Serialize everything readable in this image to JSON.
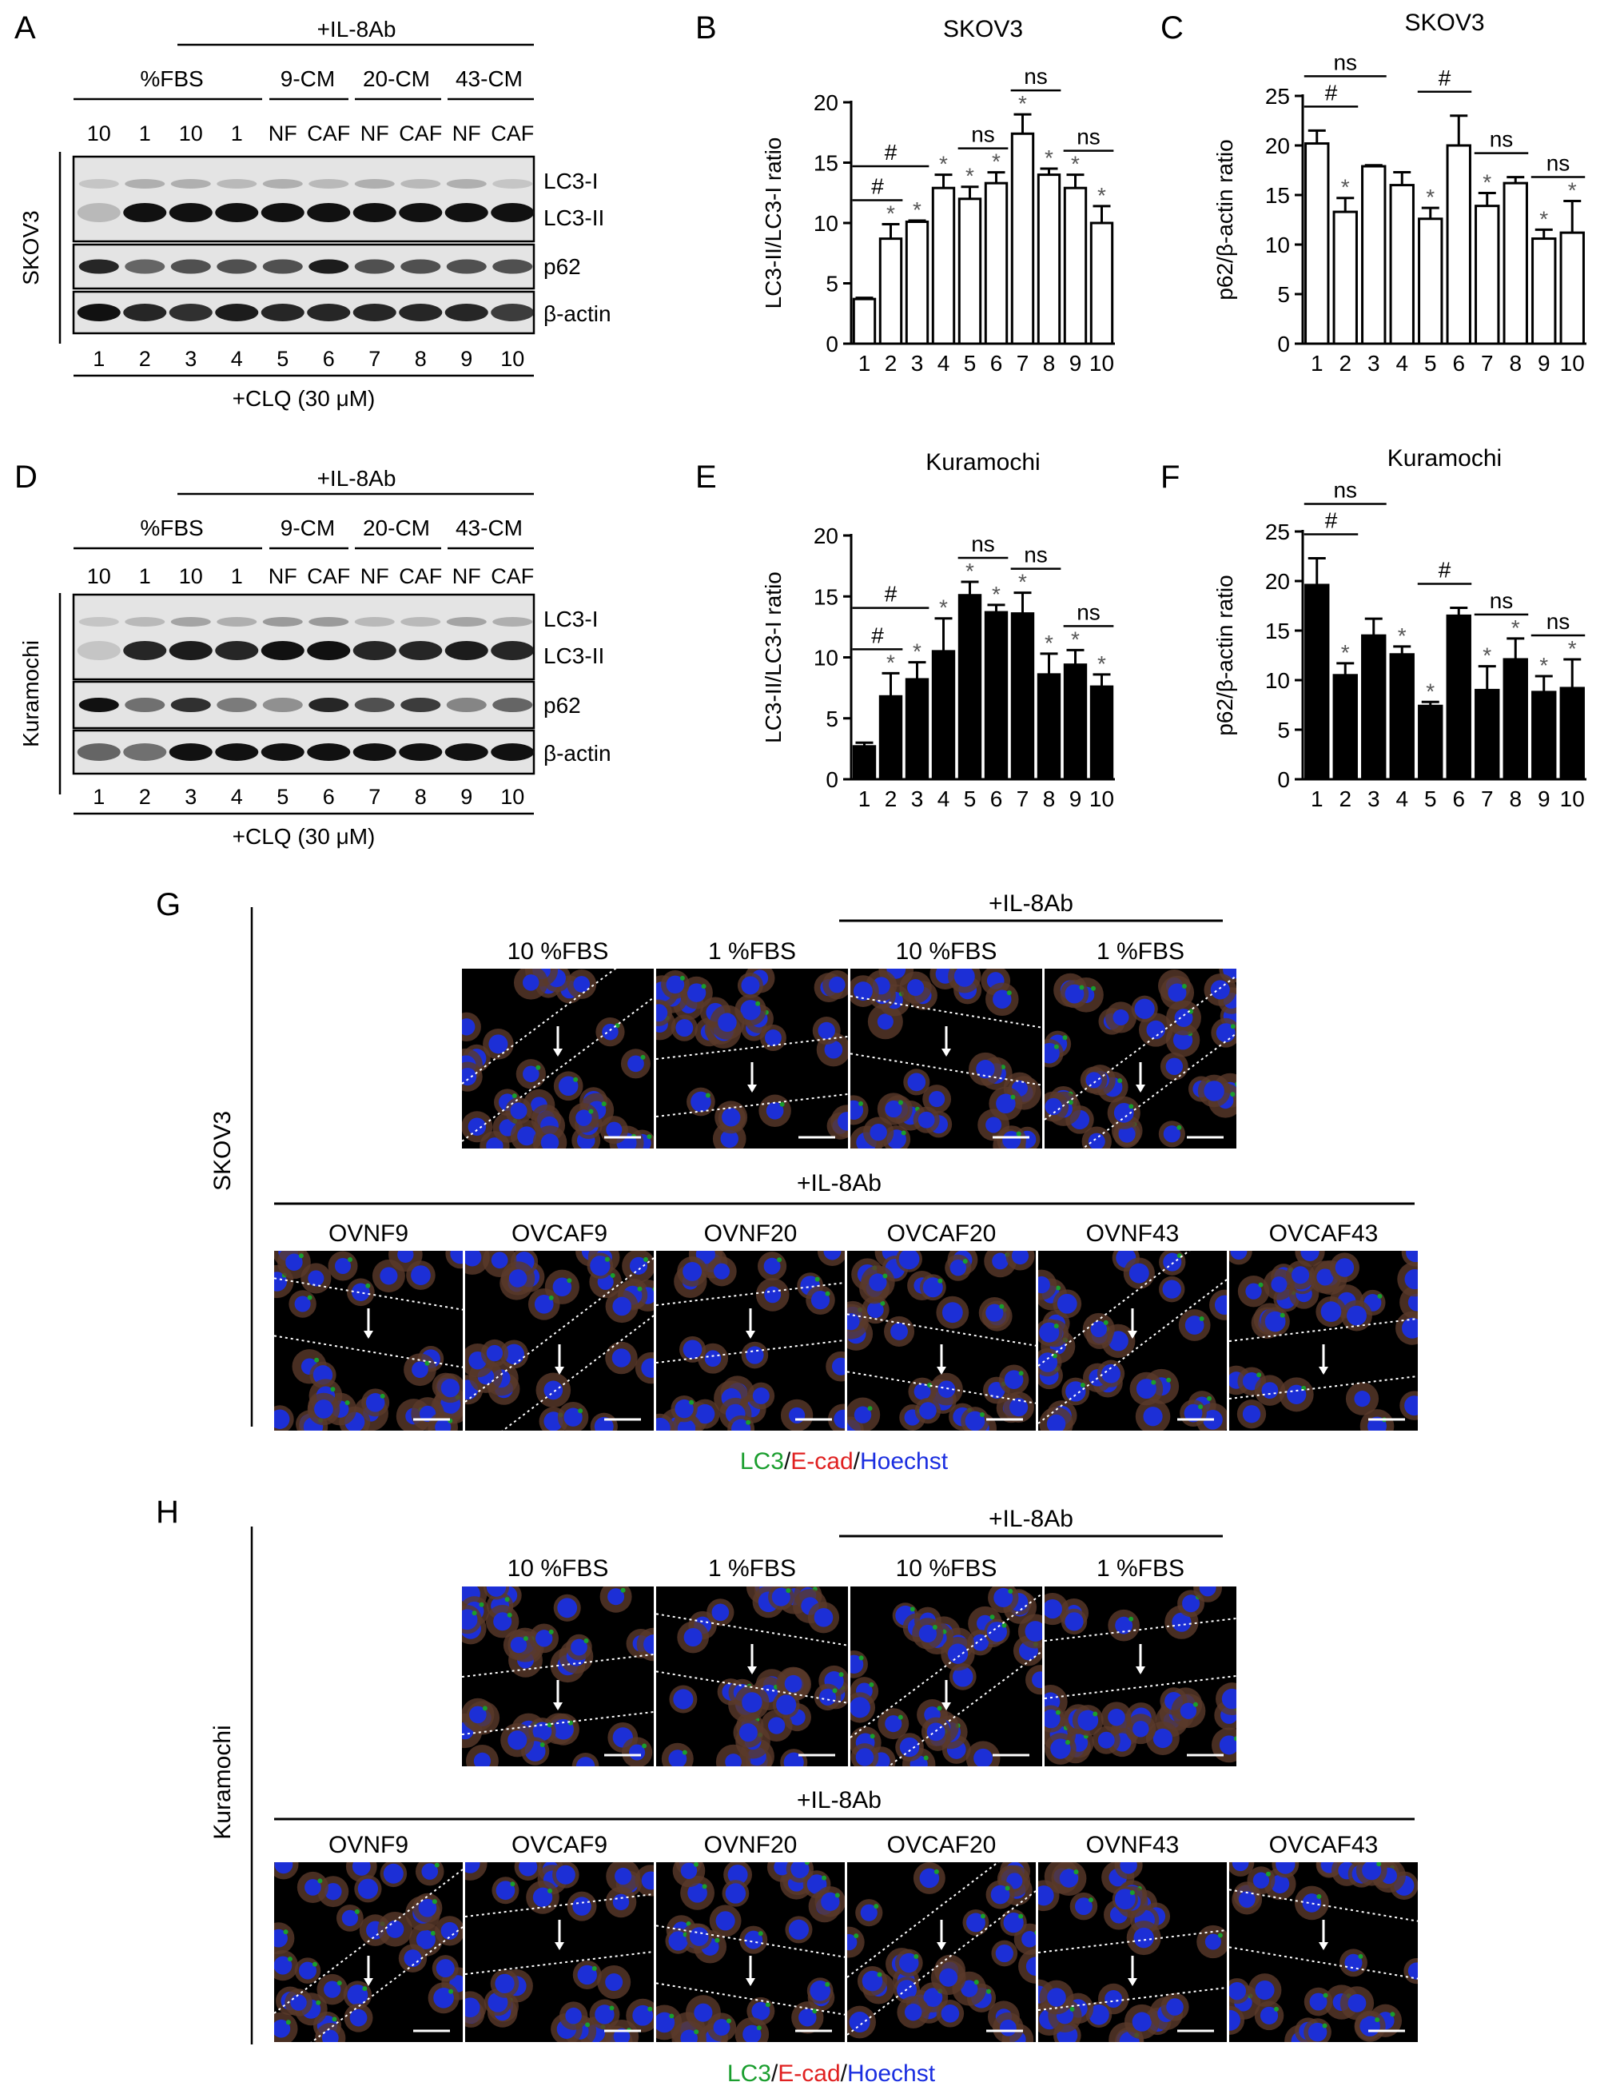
{
  "panel_letters": {
    "A": "A",
    "B": "B",
    "C": "C",
    "D": "D",
    "E": "E",
    "F": "F",
    "G": "G",
    "H": "H"
  },
  "western_blots": [
    {
      "id": "A",
      "cell_line": "SKOV3",
      "header": "+IL-8Ab",
      "group_fbs": "%FBS",
      "group_9": "9-CM",
      "group_20": "20-CM",
      "group_43": "43-CM",
      "lane_top_labels": [
        "10",
        "1",
        "10",
        "1",
        "NF",
        "CAF",
        "NF",
        "CAF",
        "NF",
        "CAF"
      ],
      "band_labels": [
        "LC3-I",
        "LC3-II",
        "p62",
        "β-actin"
      ],
      "lane_numbers": [
        "1",
        "2",
        "3",
        "4",
        "5",
        "6",
        "7",
        "8",
        "9",
        "10"
      ],
      "footer": "+CLQ (30 μM)",
      "lc3i_intensity": [
        0.15,
        0.25,
        0.25,
        0.2,
        0.25,
        0.2,
        0.25,
        0.2,
        0.25,
        0.15
      ],
      "lc3ii_intensity": [
        0.2,
        1,
        1,
        1,
        1,
        1,
        1,
        1,
        1,
        1
      ],
      "p62_intensity": [
        0.9,
        0.6,
        0.7,
        0.7,
        0.7,
        0.95,
        0.7,
        0.7,
        0.7,
        0.7
      ],
      "actin_intensity": [
        1,
        0.9,
        0.85,
        0.95,
        0.9,
        0.9,
        0.9,
        0.9,
        0.9,
        0.8
      ]
    },
    {
      "id": "D",
      "cell_line": "Kuramochi",
      "header": "+IL-8Ab",
      "group_fbs": "%FBS",
      "group_9": "9-CM",
      "group_20": "20-CM",
      "group_43": "43-CM",
      "lane_top_labels": [
        "10",
        "1",
        "10",
        "1",
        "NF",
        "CAF",
        "NF",
        "CAF",
        "NF",
        "CAF"
      ],
      "band_labels": [
        "LC3-I",
        "LC3-II",
        "p62",
        "β-actin"
      ],
      "lane_numbers": [
        "1",
        "2",
        "3",
        "4",
        "5",
        "6",
        "7",
        "8",
        "9",
        "10"
      ],
      "footer": "+CLQ (30 μM)",
      "lc3i_intensity": [
        0.15,
        0.2,
        0.3,
        0.25,
        0.35,
        0.35,
        0.2,
        0.2,
        0.3,
        0.25
      ],
      "lc3ii_intensity": [
        0.15,
        0.9,
        0.95,
        0.9,
        1,
        1,
        0.9,
        0.9,
        0.95,
        0.9
      ],
      "p62_intensity": [
        1,
        0.55,
        0.85,
        0.5,
        0.4,
        0.9,
        0.7,
        0.8,
        0.45,
        0.6
      ],
      "actin_intensity": [
        0.6,
        0.55,
        1,
        1,
        1,
        1,
        1,
        1,
        1,
        1
      ]
    }
  ],
  "chart_data": [
    {
      "panel": "B",
      "type": "bar",
      "title": "SKOV3",
      "ylabel": "LC3-II/LC3-I ratio",
      "ylim": [
        0,
        20
      ],
      "yticks": [
        0,
        5,
        10,
        15,
        20
      ],
      "categories": [
        "1",
        "2",
        "3",
        "4",
        "5",
        "6",
        "7",
        "8",
        "9",
        "10"
      ],
      "values": [
        3.7,
        8.7,
        10.1,
        12.9,
        12.0,
        13.3,
        17.4,
        14.0,
        12.9,
        10.0
      ],
      "errors": [
        0.1,
        1.2,
        0.1,
        1.1,
        1.0,
        0.9,
        1.6,
        0.5,
        1.1,
        1.4
      ],
      "fill": "#ffffff",
      "stars": [
        false,
        true,
        true,
        true,
        true,
        true,
        true,
        true,
        true,
        true
      ],
      "star_label": "*",
      "brackets": [
        {
          "from": 1,
          "to": 2,
          "level": 0,
          "label": "#"
        },
        {
          "from": 1,
          "to": 3,
          "level": 1,
          "label": "#"
        },
        {
          "from": 5,
          "to": 6,
          "level": 0,
          "label": "ns"
        },
        {
          "from": 7,
          "to": 8,
          "level": 0,
          "label": "ns"
        },
        {
          "from": 9,
          "to": 10,
          "level": 0,
          "label": "ns"
        }
      ]
    },
    {
      "panel": "C",
      "type": "bar",
      "title": "SKOV3",
      "ylabel": "p62/β-actin ratio",
      "ylim": [
        0,
        25
      ],
      "yticks": [
        0,
        5,
        10,
        15,
        20,
        25
      ],
      "categories": [
        "1",
        "2",
        "3",
        "4",
        "5",
        "6",
        "7",
        "8",
        "9",
        "10"
      ],
      "values": [
        20.2,
        13.3,
        17.9,
        16.0,
        12.6,
        20.0,
        13.9,
        16.2,
        10.6,
        11.2
      ],
      "errors": [
        1.3,
        1.4,
        0.1,
        1.3,
        1.1,
        3.0,
        1.3,
        0.6,
        0.9,
        3.2
      ],
      "fill": "#ffffff",
      "stars": [
        false,
        true,
        false,
        false,
        true,
        false,
        true,
        false,
        true,
        true
      ],
      "star_label": "*",
      "brackets": [
        {
          "from": 1,
          "to": 2,
          "level": 0,
          "label": "#"
        },
        {
          "from": 1,
          "to": 3,
          "level": 1,
          "label": "ns"
        },
        {
          "from": 5,
          "to": 6,
          "level": 0,
          "label": "#"
        },
        {
          "from": 7,
          "to": 8,
          "level": 0,
          "label": "ns"
        },
        {
          "from": 9,
          "to": 10,
          "level": 0,
          "label": "ns"
        }
      ]
    },
    {
      "panel": "E",
      "type": "bar",
      "title": "Kuramochi",
      "ylabel": "LC3-II/LC3-I ratio",
      "ylim": [
        0,
        20
      ],
      "yticks": [
        0,
        5,
        10,
        15,
        20
      ],
      "categories": [
        "1",
        "2",
        "3",
        "4",
        "5",
        "6",
        "7",
        "8",
        "9",
        "10"
      ],
      "values": [
        2.7,
        6.8,
        8.2,
        10.5,
        15.1,
        13.7,
        13.6,
        8.6,
        9.4,
        7.6
      ],
      "errors": [
        0.3,
        1.9,
        1.4,
        2.7,
        1.1,
        0.6,
        1.7,
        1.7,
        1.2,
        1.0
      ],
      "fill": "#000000",
      "stars": [
        false,
        true,
        true,
        true,
        true,
        true,
        true,
        true,
        true,
        true
      ],
      "star_label": "*",
      "brackets": [
        {
          "from": 1,
          "to": 2,
          "level": 0,
          "label": "#"
        },
        {
          "from": 1,
          "to": 3,
          "level": 1,
          "label": "#"
        },
        {
          "from": 5,
          "to": 6,
          "level": 0,
          "label": "ns"
        },
        {
          "from": 7,
          "to": 8,
          "level": 0,
          "label": "ns"
        },
        {
          "from": 9,
          "to": 10,
          "level": 0,
          "label": "ns"
        }
      ]
    },
    {
      "panel": "F",
      "type": "bar",
      "title": "Kuramochi",
      "ylabel": "p62/β-actin ratio",
      "ylim": [
        0,
        25
      ],
      "yticks": [
        0,
        5,
        10,
        15,
        20,
        25
      ],
      "categories": [
        "1",
        "2",
        "3",
        "4",
        "5",
        "6",
        "7",
        "8",
        "9",
        "10"
      ],
      "values": [
        19.6,
        10.5,
        14.5,
        12.6,
        7.4,
        16.5,
        9.0,
        12.1,
        8.8,
        9.2
      ],
      "errors": [
        2.7,
        1.2,
        1.7,
        0.8,
        0.4,
        0.8,
        2.4,
        2.1,
        1.6,
        2.9
      ],
      "fill": "#000000",
      "stars": [
        false,
        true,
        false,
        true,
        true,
        false,
        true,
        true,
        true,
        true
      ],
      "star_label": "*",
      "brackets": [
        {
          "from": 1,
          "to": 2,
          "level": 0,
          "label": "#"
        },
        {
          "from": 1,
          "to": 3,
          "level": 1,
          "label": "ns"
        },
        {
          "from": 5,
          "to": 6,
          "level": 0,
          "label": "#"
        },
        {
          "from": 7,
          "to": 8,
          "level": 0,
          "label": "ns"
        },
        {
          "from": 9,
          "to": 10,
          "level": 0,
          "label": "ns"
        }
      ]
    }
  ],
  "microscopy": [
    {
      "panel": "G",
      "cell_line": "SKOV3",
      "header_top": "+IL-8Ab",
      "row1_labels": [
        "10 %FBS",
        "1 %FBS",
        "10 %FBS",
        "1 %FBS"
      ],
      "header_bottom": "+IL-8Ab",
      "row2_labels": [
        "OVNF9",
        "OVCAF9",
        "OVNF20",
        "OVCAF20",
        "OVNF43",
        "OVCAF43"
      ],
      "legend": {
        "lc3": "LC3",
        "slash1": "/",
        "ecad": "E-cad",
        "slash2": "/",
        "hoechst": "Hoechst"
      }
    },
    {
      "panel": "H",
      "cell_line": "Kuramochi",
      "header_top": "+IL-8Ab",
      "row1_labels": [
        "10 %FBS",
        "1 %FBS",
        "10 %FBS",
        "1 %FBS"
      ],
      "header_bottom": "+IL-8Ab",
      "row2_labels": [
        "OVNF9",
        "OVCAF9",
        "OVNF20",
        "OVCAF20",
        "OVNF43",
        "OVCAF43"
      ],
      "legend": {
        "lc3": "LC3",
        "slash1": "/",
        "ecad": "E-cad",
        "slash2": "/",
        "hoechst": "Hoechst"
      }
    }
  ],
  "colors": {
    "lc3": "#1a9e2e",
    "ecad": "#e02020",
    "hoechst": "#1a2ee0",
    "nucleus": "#1c2fd6",
    "cytoplasm": "#5a3a2a",
    "blot_bg": "#e4e4e4",
    "band": "#111111"
  }
}
